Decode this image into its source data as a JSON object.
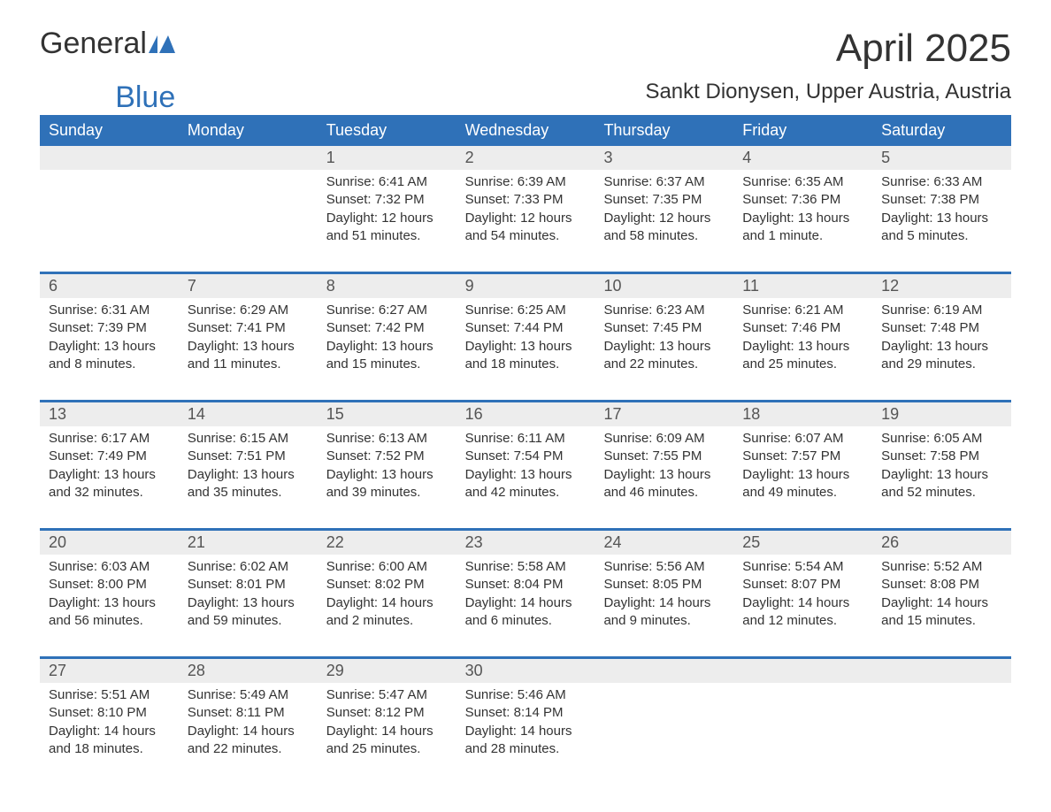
{
  "logo": {
    "general": "General",
    "blue": "Blue"
  },
  "title": "April 2025",
  "location": "Sankt Dionysen, Upper Austria, Austria",
  "colors": {
    "header_bg": "#2f71b8",
    "header_text": "#ffffff",
    "daynum_bg": "#ededed",
    "week_border": "#2f71b8",
    "body_text": "#333333",
    "logo_blue": "#2f71b8"
  },
  "day_names": [
    "Sunday",
    "Monday",
    "Tuesday",
    "Wednesday",
    "Thursday",
    "Friday",
    "Saturday"
  ],
  "weeks": [
    [
      {
        "num": "",
        "sunrise": "",
        "sunset": "",
        "daylight": ""
      },
      {
        "num": "",
        "sunrise": "",
        "sunset": "",
        "daylight": ""
      },
      {
        "num": "1",
        "sunrise": "Sunrise: 6:41 AM",
        "sunset": "Sunset: 7:32 PM",
        "daylight": "Daylight: 12 hours and 51 minutes."
      },
      {
        "num": "2",
        "sunrise": "Sunrise: 6:39 AM",
        "sunset": "Sunset: 7:33 PM",
        "daylight": "Daylight: 12 hours and 54 minutes."
      },
      {
        "num": "3",
        "sunrise": "Sunrise: 6:37 AM",
        "sunset": "Sunset: 7:35 PM",
        "daylight": "Daylight: 12 hours and 58 minutes."
      },
      {
        "num": "4",
        "sunrise": "Sunrise: 6:35 AM",
        "sunset": "Sunset: 7:36 PM",
        "daylight": "Daylight: 13 hours and 1 minute."
      },
      {
        "num": "5",
        "sunrise": "Sunrise: 6:33 AM",
        "sunset": "Sunset: 7:38 PM",
        "daylight": "Daylight: 13 hours and 5 minutes."
      }
    ],
    [
      {
        "num": "6",
        "sunrise": "Sunrise: 6:31 AM",
        "sunset": "Sunset: 7:39 PM",
        "daylight": "Daylight: 13 hours and 8 minutes."
      },
      {
        "num": "7",
        "sunrise": "Sunrise: 6:29 AM",
        "sunset": "Sunset: 7:41 PM",
        "daylight": "Daylight: 13 hours and 11 minutes."
      },
      {
        "num": "8",
        "sunrise": "Sunrise: 6:27 AM",
        "sunset": "Sunset: 7:42 PM",
        "daylight": "Daylight: 13 hours and 15 minutes."
      },
      {
        "num": "9",
        "sunrise": "Sunrise: 6:25 AM",
        "sunset": "Sunset: 7:44 PM",
        "daylight": "Daylight: 13 hours and 18 minutes."
      },
      {
        "num": "10",
        "sunrise": "Sunrise: 6:23 AM",
        "sunset": "Sunset: 7:45 PM",
        "daylight": "Daylight: 13 hours and 22 minutes."
      },
      {
        "num": "11",
        "sunrise": "Sunrise: 6:21 AM",
        "sunset": "Sunset: 7:46 PM",
        "daylight": "Daylight: 13 hours and 25 minutes."
      },
      {
        "num": "12",
        "sunrise": "Sunrise: 6:19 AM",
        "sunset": "Sunset: 7:48 PM",
        "daylight": "Daylight: 13 hours and 29 minutes."
      }
    ],
    [
      {
        "num": "13",
        "sunrise": "Sunrise: 6:17 AM",
        "sunset": "Sunset: 7:49 PM",
        "daylight": "Daylight: 13 hours and 32 minutes."
      },
      {
        "num": "14",
        "sunrise": "Sunrise: 6:15 AM",
        "sunset": "Sunset: 7:51 PM",
        "daylight": "Daylight: 13 hours and 35 minutes."
      },
      {
        "num": "15",
        "sunrise": "Sunrise: 6:13 AM",
        "sunset": "Sunset: 7:52 PM",
        "daylight": "Daylight: 13 hours and 39 minutes."
      },
      {
        "num": "16",
        "sunrise": "Sunrise: 6:11 AM",
        "sunset": "Sunset: 7:54 PM",
        "daylight": "Daylight: 13 hours and 42 minutes."
      },
      {
        "num": "17",
        "sunrise": "Sunrise: 6:09 AM",
        "sunset": "Sunset: 7:55 PM",
        "daylight": "Daylight: 13 hours and 46 minutes."
      },
      {
        "num": "18",
        "sunrise": "Sunrise: 6:07 AM",
        "sunset": "Sunset: 7:57 PM",
        "daylight": "Daylight: 13 hours and 49 minutes."
      },
      {
        "num": "19",
        "sunrise": "Sunrise: 6:05 AM",
        "sunset": "Sunset: 7:58 PM",
        "daylight": "Daylight: 13 hours and 52 minutes."
      }
    ],
    [
      {
        "num": "20",
        "sunrise": "Sunrise: 6:03 AM",
        "sunset": "Sunset: 8:00 PM",
        "daylight": "Daylight: 13 hours and 56 minutes."
      },
      {
        "num": "21",
        "sunrise": "Sunrise: 6:02 AM",
        "sunset": "Sunset: 8:01 PM",
        "daylight": "Daylight: 13 hours and 59 minutes."
      },
      {
        "num": "22",
        "sunrise": "Sunrise: 6:00 AM",
        "sunset": "Sunset: 8:02 PM",
        "daylight": "Daylight: 14 hours and 2 minutes."
      },
      {
        "num": "23",
        "sunrise": "Sunrise: 5:58 AM",
        "sunset": "Sunset: 8:04 PM",
        "daylight": "Daylight: 14 hours and 6 minutes."
      },
      {
        "num": "24",
        "sunrise": "Sunrise: 5:56 AM",
        "sunset": "Sunset: 8:05 PM",
        "daylight": "Daylight: 14 hours and 9 minutes."
      },
      {
        "num": "25",
        "sunrise": "Sunrise: 5:54 AM",
        "sunset": "Sunset: 8:07 PM",
        "daylight": "Daylight: 14 hours and 12 minutes."
      },
      {
        "num": "26",
        "sunrise": "Sunrise: 5:52 AM",
        "sunset": "Sunset: 8:08 PM",
        "daylight": "Daylight: 14 hours and 15 minutes."
      }
    ],
    [
      {
        "num": "27",
        "sunrise": "Sunrise: 5:51 AM",
        "sunset": "Sunset: 8:10 PM",
        "daylight": "Daylight: 14 hours and 18 minutes."
      },
      {
        "num": "28",
        "sunrise": "Sunrise: 5:49 AM",
        "sunset": "Sunset: 8:11 PM",
        "daylight": "Daylight: 14 hours and 22 minutes."
      },
      {
        "num": "29",
        "sunrise": "Sunrise: 5:47 AM",
        "sunset": "Sunset: 8:12 PM",
        "daylight": "Daylight: 14 hours and 25 minutes."
      },
      {
        "num": "30",
        "sunrise": "Sunrise: 5:46 AM",
        "sunset": "Sunset: 8:14 PM",
        "daylight": "Daylight: 14 hours and 28 minutes."
      },
      {
        "num": "",
        "sunrise": "",
        "sunset": "",
        "daylight": ""
      },
      {
        "num": "",
        "sunrise": "",
        "sunset": "",
        "daylight": ""
      },
      {
        "num": "",
        "sunrise": "",
        "sunset": "",
        "daylight": ""
      }
    ]
  ]
}
